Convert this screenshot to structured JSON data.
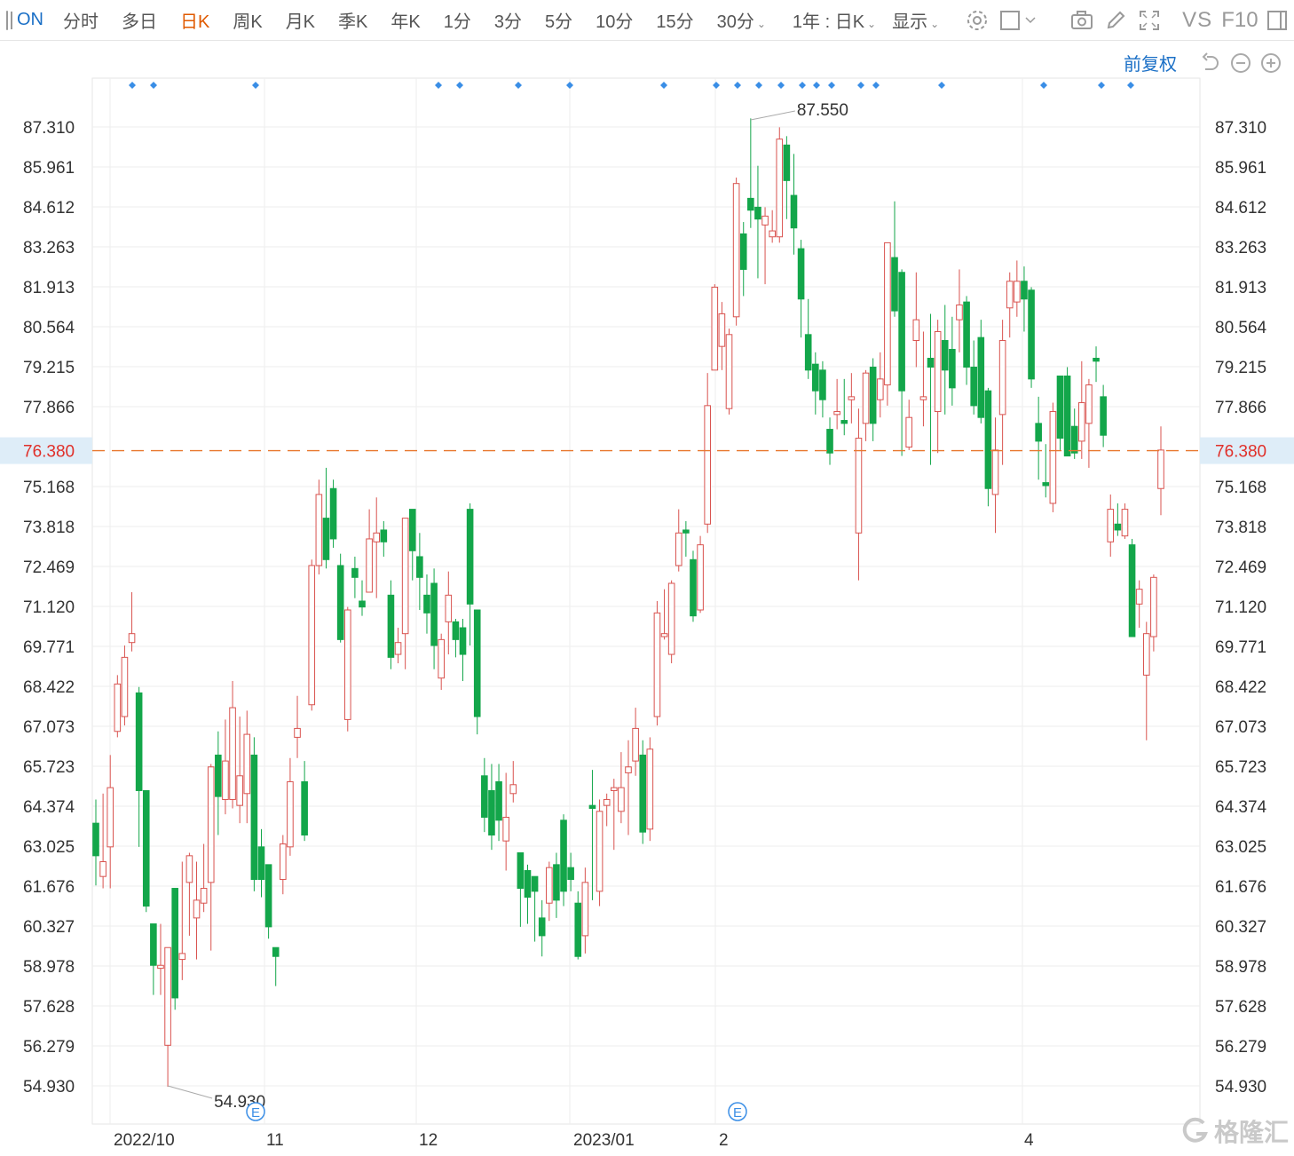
{
  "toolbar": {
    "ticker": "ON",
    "tabs": [
      "分时",
      "多日",
      "日K",
      "周K",
      "月K",
      "季K",
      "年K",
      "1分",
      "3分",
      "5分",
      "10分",
      "15分",
      "30分"
    ],
    "active_tab": "日K",
    "range_select": "1年 : 日K",
    "display_label": "显示",
    "vs_label": "VS",
    "f10_label": "F10",
    "icons": [
      "panel-toggle-icon",
      "gear-icon",
      "square-icon",
      "camera-icon",
      "pencil-icon",
      "fullscreen-icon",
      "sidebar-icon"
    ]
  },
  "adjust": {
    "label": "前复权",
    "icons": [
      "undo-icon",
      "zoom-out-icon",
      "zoom-in-icon"
    ]
  },
  "colors": {
    "up": "#d9534f",
    "down": "#13a64a",
    "current_price": "#e8772e",
    "current_label_bg": "#deedf8",
    "current_label_text": "#e0302a",
    "grid": "#eeeeee",
    "event_marker": "#3a8ee6"
  },
  "chart_data": {
    "type": "candlestick",
    "y_ticks": [
      "87.310",
      "85.961",
      "84.612",
      "83.263",
      "81.913",
      "80.564",
      "79.215",
      "77.866",
      "76.380",
      "75.168",
      "73.818",
      "72.469",
      "71.120",
      "69.771",
      "68.422",
      "67.073",
      "65.723",
      "64.374",
      "63.025",
      "61.676",
      "60.327",
      "58.978",
      "57.628",
      "56.279",
      "54.930"
    ],
    "ylim": [
      54.93,
      87.31
    ],
    "current_price": 76.38,
    "current_price_label": "76.380",
    "high_label": "87.550",
    "low_label": "54.930",
    "high": 87.55,
    "low": 54.93,
    "x_labels": [
      "2022/10",
      "11",
      "12",
      "2023/01",
      "2",
      "4"
    ],
    "earnings_marker": "E",
    "candles": [
      [
        63.8,
        62.7,
        64.6,
        61.7
      ],
      [
        62.0,
        62.5,
        64.8,
        61.6
      ],
      [
        63.0,
        65.0,
        66.1,
        61.6
      ],
      [
        66.9,
        68.5,
        68.8,
        66.7
      ],
      [
        67.4,
        69.4,
        69.8,
        67.1
      ],
      [
        69.9,
        70.2,
        71.6,
        69.6
      ],
      [
        68.2,
        64.9,
        68.4,
        63.0
      ],
      [
        64.9,
        61.0,
        64.9,
        60.8
      ],
      [
        60.4,
        59.0,
        60.4,
        58.0
      ],
      [
        58.9,
        59.0,
        60.4,
        58.0
      ],
      [
        56.3,
        59.6,
        59.6,
        54.9
      ],
      [
        61.6,
        57.9,
        61.6,
        57.5
      ],
      [
        59.2,
        59.4,
        62.5,
        58.5
      ],
      [
        61.8,
        62.7,
        62.8,
        60.0
      ],
      [
        60.6,
        61.2,
        62.5,
        59.2
      ],
      [
        61.1,
        61.6,
        63.1,
        60.8
      ],
      [
        61.8,
        65.7,
        65.8,
        59.5
      ],
      [
        66.1,
        64.7,
        66.9,
        63.4
      ],
      [
        64.6,
        65.9,
        67.3,
        64.1
      ],
      [
        64.6,
        67.7,
        68.6,
        64.3
      ],
      [
        64.4,
        65.4,
        67.4,
        63.8
      ],
      [
        64.8,
        66.8,
        67.6,
        63.8
      ],
      [
        66.1,
        61.9,
        66.7,
        61.5
      ],
      [
        63.0,
        61.9,
        63.6,
        61.3
      ],
      [
        62.4,
        60.3,
        62.4,
        59.9
      ],
      [
        59.6,
        59.3,
        59.6,
        58.3
      ],
      [
        61.9,
        63.1,
        63.4,
        61.4
      ],
      [
        63.0,
        65.2,
        66.0,
        62.7
      ],
      [
        66.7,
        67.0,
        68.1,
        66.0
      ],
      [
        65.2,
        63.4,
        65.9,
        63.2
      ],
      [
        67.8,
        72.5,
        72.7,
        67.6
      ],
      [
        72.5,
        74.9,
        75.4,
        72.2
      ],
      [
        74.1,
        72.7,
        75.8,
        72.4
      ],
      [
        75.1,
        73.4,
        75.4,
        73.1
      ],
      [
        72.5,
        70.0,
        72.9,
        69.9
      ],
      [
        67.3,
        71.0,
        71.1,
        66.9
      ],
      [
        72.4,
        72.1,
        72.8,
        71.4
      ],
      [
        71.3,
        71.1,
        72.0,
        70.8
      ],
      [
        71.6,
        73.4,
        74.4,
        71.6
      ],
      [
        73.3,
        73.6,
        74.8,
        71.4
      ],
      [
        73.7,
        73.3,
        74.0,
        72.8
      ],
      [
        71.5,
        69.4,
        72.0,
        69.0
      ],
      [
        69.5,
        69.9,
        70.4,
        69.2
      ],
      [
        70.2,
        74.1,
        74.1,
        69.0
      ],
      [
        74.4,
        73.0,
        74.4,
        72.0
      ],
      [
        72.8,
        72.1,
        73.6,
        71.0
      ],
      [
        71.5,
        70.9,
        72.2,
        70.2
      ],
      [
        71.9,
        69.8,
        72.4,
        69.0
      ],
      [
        68.7,
        70.0,
        70.2,
        68.3
      ],
      [
        70.6,
        71.5,
        72.3,
        69.5
      ],
      [
        70.6,
        70.0,
        70.7,
        69.4
      ],
      [
        70.4,
        69.5,
        70.7,
        68.6
      ],
      [
        74.4,
        71.2,
        74.6,
        69.8
      ],
      [
        71.0,
        67.4,
        71.0,
        66.8
      ],
      [
        65.4,
        64.0,
        66.0,
        63.5
      ],
      [
        64.9,
        63.4,
        65.8,
        62.9
      ],
      [
        65.2,
        63.9,
        65.8,
        63.2
      ],
      [
        63.2,
        64.0,
        65.5,
        62.2
      ],
      [
        64.8,
        65.1,
        65.9,
        64.5
      ],
      [
        62.8,
        61.6,
        62.8,
        60.3
      ],
      [
        62.2,
        61.3,
        62.4,
        60.4
      ],
      [
        62.0,
        61.5,
        62.0,
        59.8
      ],
      [
        60.6,
        60.0,
        61.2,
        59.3
      ],
      [
        61.1,
        62.3,
        62.5,
        60.5
      ],
      [
        62.4,
        61.2,
        62.8,
        60.6
      ],
      [
        63.9,
        61.5,
        64.1,
        61.0
      ],
      [
        62.3,
        61.9,
        62.8,
        61.5
      ],
      [
        61.1,
        59.3,
        61.5,
        59.2
      ],
      [
        60.0,
        61.8,
        62.3,
        59.4
      ],
      [
        64.4,
        64.3,
        65.6,
        61.2
      ],
      [
        61.5,
        64.2,
        64.6,
        61.0
      ],
      [
        64.4,
        64.6,
        64.8,
        63.7
      ],
      [
        64.9,
        65.0,
        65.3,
        62.9
      ],
      [
        64.2,
        65.0,
        66.2,
        63.8
      ],
      [
        65.5,
        65.7,
        66.6,
        63.4
      ],
      [
        65.9,
        67.0,
        67.7,
        65.4
      ],
      [
        66.1,
        63.5,
        66.6,
        63.1
      ],
      [
        63.6,
        66.3,
        66.7,
        63.2
      ],
      [
        67.4,
        70.9,
        71.3,
        67.1
      ],
      [
        70.1,
        70.2,
        71.7,
        70.0
      ],
      [
        69.5,
        71.9,
        72.0,
        69.2
      ],
      [
        72.5,
        73.6,
        74.4,
        72.3
      ],
      [
        73.7,
        73.6,
        74.0,
        72.8
      ],
      [
        72.7,
        70.8,
        73.0,
        70.6
      ],
      [
        71.0,
        73.2,
        73.5,
        70.9
      ],
      [
        73.9,
        77.9,
        79.0,
        73.6
      ],
      [
        79.1,
        81.9,
        82.0,
        79.1
      ],
      [
        79.9,
        81.0,
        81.4,
        79.1
      ],
      [
        77.8,
        80.3,
        80.5,
        77.6
      ],
      [
        80.9,
        85.4,
        85.6,
        80.6
      ],
      [
        83.7,
        82.5,
        84.1,
        81.6
      ],
      [
        84.9,
        84.5,
        87.6,
        83.9
      ],
      [
        84.6,
        84.2,
        86.0,
        82.2
      ],
      [
        84.0,
        84.3,
        84.6,
        82.0
      ],
      [
        83.6,
        83.8,
        84.5,
        83.4
      ],
      [
        83.6,
        86.9,
        87.3,
        83.4
      ],
      [
        86.7,
        85.5,
        87.0,
        84.2
      ],
      [
        85.0,
        83.9,
        86.4,
        83.0
      ],
      [
        83.2,
        81.5,
        83.5,
        80.2
      ],
      [
        80.3,
        79.1,
        81.5,
        78.8
      ],
      [
        79.3,
        78.4,
        79.7,
        77.6
      ],
      [
        79.1,
        78.1,
        79.4,
        77.5
      ],
      [
        77.1,
        76.3,
        77.5,
        75.9
      ],
      [
        77.6,
        77.7,
        78.8,
        77.1
      ],
      [
        77.4,
        77.3,
        78.8,
        76.9
      ],
      [
        78.1,
        78.2,
        79.0,
        77.3
      ],
      [
        73.6,
        76.8,
        77.8,
        72.0
      ],
      [
        77.3,
        79.0,
        79.1,
        76.7
      ],
      [
        79.2,
        77.3,
        79.5,
        76.7
      ],
      [
        78.1,
        78.8,
        79.7,
        77.5
      ],
      [
        78.6,
        83.4,
        83.4,
        77.9
      ],
      [
        82.9,
        81.1,
        84.8,
        80.9
      ],
      [
        82.4,
        78.4,
        82.5,
        76.2
      ],
      [
        76.5,
        77.5,
        78.1,
        76.4
      ],
      [
        80.1,
        80.8,
        82.4,
        79.2
      ],
      [
        78.1,
        78.2,
        80.4,
        77.2
      ],
      [
        79.5,
        79.2,
        81.0,
        75.9
      ],
      [
        77.7,
        80.4,
        80.8,
        76.3
      ],
      [
        80.1,
        79.1,
        81.3,
        77.6
      ],
      [
        79.8,
        78.5,
        80.9,
        77.9
      ],
      [
        80.8,
        81.3,
        82.5,
        79.7
      ],
      [
        81.4,
        79.2,
        81.6,
        78.6
      ],
      [
        79.2,
        77.9,
        80.1,
        77.6
      ],
      [
        80.2,
        77.5,
        80.8,
        77.3
      ],
      [
        78.4,
        75.1,
        78.5,
        74.5
      ],
      [
        74.9,
        76.4,
        77.5,
        73.6
      ],
      [
        77.6,
        80.1,
        80.8,
        75.9
      ],
      [
        81.2,
        82.1,
        82.4,
        80.2
      ],
      [
        81.4,
        82.1,
        82.8,
        80.9
      ],
      [
        82.1,
        81.5,
        82.6,
        80.4
      ],
      [
        81.8,
        78.8,
        81.9,
        78.5
      ],
      [
        77.3,
        76.7,
        78.2,
        75.4
      ],
      [
        75.3,
        75.2,
        76.6,
        74.8
      ],
      [
        74.6,
        77.7,
        78.0,
        74.3
      ],
      [
        78.9,
        76.8,
        78.9,
        76.4
      ],
      [
        78.9,
        76.2,
        79.2,
        76.2
      ],
      [
        77.2,
        76.3,
        77.8,
        76.1
      ],
      [
        76.7,
        78.0,
        79.4,
        76.1
      ],
      [
        77.3,
        78.6,
        78.8,
        75.8
      ],
      [
        79.5,
        79.4,
        79.9,
        78.7
      ],
      [
        78.2,
        76.9,
        78.6,
        76.5
      ],
      [
        73.3,
        74.4,
        74.9,
        72.8
      ],
      [
        73.9,
        73.7,
        74.6,
        73.5
      ],
      [
        73.5,
        74.4,
        74.6,
        73.4
      ],
      [
        73.2,
        70.1,
        73.4,
        70.1
      ],
      [
        71.2,
        71.7,
        72.0,
        70.4
      ],
      [
        68.8,
        70.2,
        70.6,
        66.6
      ],
      [
        70.1,
        72.1,
        72.2,
        69.6
      ],
      [
        75.1,
        76.4,
        77.2,
        74.2
      ]
    ]
  }
}
